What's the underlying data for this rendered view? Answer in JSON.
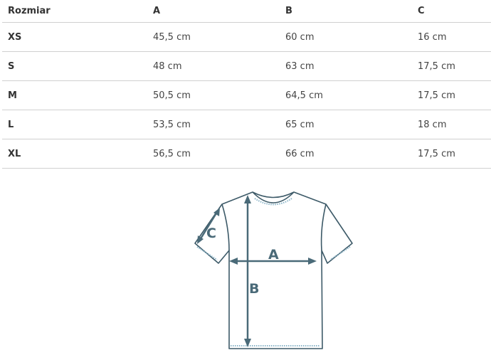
{
  "table": {
    "headers": [
      "Rozmiar",
      "A",
      "B",
      "C"
    ],
    "rows": [
      [
        "XS",
        "45,5 cm",
        "60 cm",
        "16 cm"
      ],
      [
        "S",
        "48 cm",
        "63 cm",
        "17,5 cm"
      ],
      [
        "M",
        "50,5 cm",
        "64,5 cm",
        "17,5 cm"
      ],
      [
        "L",
        "53,5 cm",
        "65 cm",
        "18 cm"
      ],
      [
        "XL",
        "56,5 cm",
        "66 cm",
        "17,5 cm"
      ]
    ]
  },
  "diagram": {
    "label_a": "A",
    "label_b": "B",
    "label_c": "C",
    "line_color": "#3d5a68",
    "stitch_color": "#8ab4c8"
  }
}
